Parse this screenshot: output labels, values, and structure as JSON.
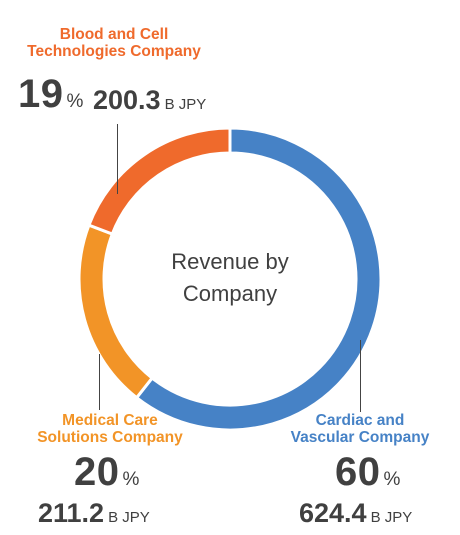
{
  "chart_data": {
    "type": "pie",
    "title": "Revenue by Company",
    "slices": [
      {
        "name": "Cardiac and Vascular Company",
        "percent": 60,
        "value": 624.4,
        "unit": "B JPY",
        "color": "#4682c6"
      },
      {
        "name": "Medical Care Solutions Company",
        "percent": 20,
        "value": 211.2,
        "unit": "B JPY",
        "color": "#f29427"
      },
      {
        "name": "Blood and Cell Technologies Company",
        "percent": 19,
        "value": 200.3,
        "unit": "B JPY",
        "color": "#ef6a2c"
      }
    ]
  },
  "labels": {
    "blood": {
      "name_line1": "Blood and Cell",
      "name_line2": "Technologies Company",
      "percent": "19",
      "percent_unit": "%",
      "amount": "200.3",
      "amount_unit": "B JPY"
    },
    "medical": {
      "name_line1": "Medical Care",
      "name_line2": "Solutions Company",
      "percent": "20",
      "percent_unit": "%",
      "amount": "211.2",
      "amount_unit": "B JPY"
    },
    "cardiac": {
      "name_line1": "Cardiac and",
      "name_line2": "Vascular Company",
      "percent": "60",
      "percent_unit": "%",
      "amount": "624.4",
      "amount_unit": "B JPY"
    },
    "center_line1": "Revenue by",
    "center_line2": "Company"
  }
}
